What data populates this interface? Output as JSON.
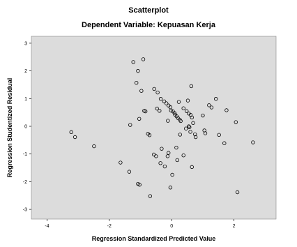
{
  "chart_data": {
    "type": "scatter",
    "title": "Scatterplot",
    "subtitle": "Dependent Variable: Kepuasan Kerja",
    "xlabel": "Regression Standardized Predicted Value",
    "ylabel": "Regression Studentized Residual",
    "xlim": [
      -4.5,
      3.35
    ],
    "ylim": [
      -3.35,
      3.25
    ],
    "xticks": [
      -4,
      -2,
      0,
      2
    ],
    "yticks": [
      3,
      2,
      1,
      0,
      -1,
      -2,
      -3
    ],
    "grid": false,
    "colors": {
      "plot_background": "#dcdcdc",
      "marker": "#000000"
    },
    "points": [
      [
        -0.91,
        2.42
      ],
      [
        -1.23,
        2.32
      ],
      [
        -1.08,
        2.0
      ],
      [
        -1.13,
        1.57
      ],
      [
        -0.97,
        1.28
      ],
      [
        -0.56,
        1.35
      ],
      [
        -0.45,
        1.22
      ],
      [
        -0.35,
        0.99
      ],
      [
        -0.24,
        0.9
      ],
      [
        -0.17,
        0.83
      ],
      [
        -0.1,
        0.75
      ],
      [
        -0.04,
        0.69
      ],
      [
        -0.02,
        0.57
      ],
      [
        0.04,
        0.54
      ],
      [
        0.09,
        0.48
      ],
      [
        0.11,
        0.42
      ],
      [
        0.16,
        0.36
      ],
      [
        0.2,
        0.3
      ],
      [
        0.26,
        0.24
      ],
      [
        0.29,
        0.19
      ],
      [
        0.23,
        0.88
      ],
      [
        0.38,
        0.65
      ],
      [
        0.48,
        0.55
      ],
      [
        0.55,
        0.46
      ],
      [
        0.61,
        0.41
      ],
      [
        0.65,
        0.32
      ],
      [
        0.52,
        0.93
      ],
      [
        0.63,
        1.45
      ],
      [
        0.69,
        0.12
      ],
      [
        0.75,
        -0.29
      ],
      [
        0.77,
        -0.39
      ],
      [
        0.57,
        -0.03
      ],
      [
        0.6,
        -0.2
      ],
      [
        0.55,
        0.0
      ],
      [
        0.46,
        -0.08
      ],
      [
        1.0,
        0.39
      ],
      [
        1.05,
        -0.15
      ],
      [
        1.08,
        -0.25
      ],
      [
        1.2,
        0.76
      ],
      [
        1.28,
        0.68
      ],
      [
        1.42,
        0.99
      ],
      [
        1.52,
        -0.31
      ],
      [
        1.69,
        -0.61
      ],
      [
        1.76,
        0.58
      ],
      [
        2.06,
        0.15
      ],
      [
        2.11,
        -2.38
      ],
      [
        2.61,
        -0.58
      ],
      [
        -0.88,
        0.56
      ],
      [
        -0.84,
        0.54
      ],
      [
        -0.47,
        0.64
      ],
      [
        -0.39,
        0.56
      ],
      [
        -0.12,
        0.2
      ],
      [
        -0.76,
        -0.27
      ],
      [
        -0.71,
        -0.32
      ],
      [
        -0.57,
        -1.02
      ],
      [
        -0.5,
        -1.08
      ],
      [
        -0.32,
        -0.81
      ],
      [
        -0.36,
        -1.33
      ],
      [
        -0.22,
        -1.45
      ],
      [
        -0.1,
        -0.96
      ],
      [
        -0.13,
        -1.08
      ],
      [
        0.02,
        -1.75
      ],
      [
        -0.04,
        -2.21
      ],
      [
        0.15,
        -0.77
      ],
      [
        0.27,
        -0.3
      ],
      [
        0.38,
        -1.05
      ],
      [
        0.65,
        -1.47
      ],
      [
        -0.69,
        -2.52
      ],
      [
        -1.03,
        -2.11
      ],
      [
        -1.08,
        -2.08
      ],
      [
        -1.36,
        -1.64
      ],
      [
        -1.64,
        -1.31
      ],
      [
        -1.33,
        0.05
      ],
      [
        -1.04,
        0.27
      ],
      [
        -2.49,
        -0.72
      ],
      [
        -3.22,
        -0.21
      ],
      [
        -3.1,
        -0.39
      ],
      [
        0.18,
        -1.22
      ]
    ]
  }
}
